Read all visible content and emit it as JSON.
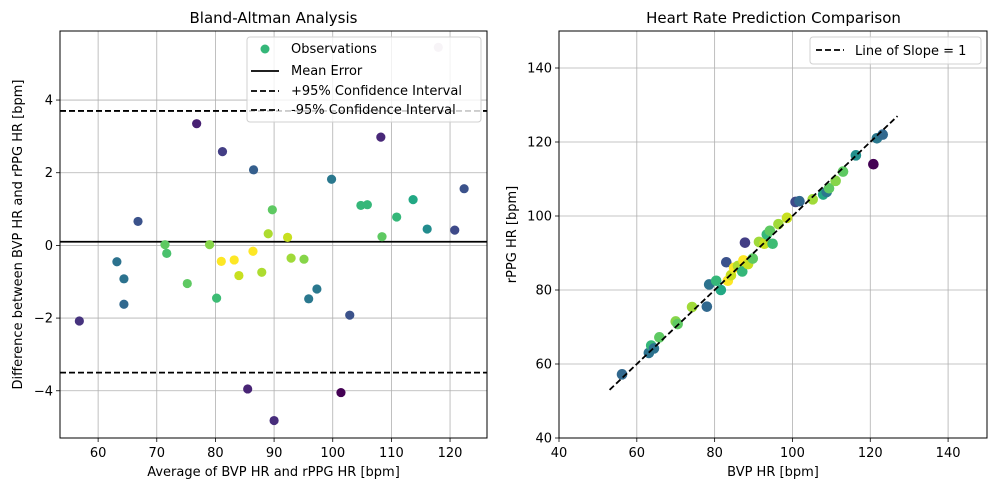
{
  "chart_data": [
    {
      "type": "scatter",
      "title": "Bland-Altman Analysis",
      "xlabel": "Average of BVP HR and rPPG HR [bpm]",
      "ylabel": "Difference between BVP HR and rPPG HR [bpm]",
      "xlim": [
        53.5,
        126.3
      ],
      "ylim": [
        -5.3,
        5.9
      ],
      "xticks": [
        60,
        70,
        80,
        90,
        100,
        110,
        120
      ],
      "yticks": [
        -4,
        -2,
        0,
        2,
        4
      ],
      "grid": true,
      "legend_position": "top-right",
      "mean_error": 0.1,
      "upper_ci": 3.7,
      "lower_ci": -3.5,
      "legend": {
        "observations": "Observations",
        "mean": "Mean Error",
        "upper": "+95% Confidence Interval",
        "lower": "-95% Confidence Interval"
      },
      "points": [
        {
          "x": 56.8,
          "y": -2.08,
          "c": "#46337e"
        },
        {
          "x": 63.2,
          "y": -0.45,
          "c": "#2c728e"
        },
        {
          "x": 64.4,
          "y": -0.92,
          "c": "#2c728e"
        },
        {
          "x": 64.4,
          "y": -1.62,
          "c": "#31688e"
        },
        {
          "x": 66.8,
          "y": 0.66,
          "c": "#3b528b"
        },
        {
          "x": 71.4,
          "y": 0.02,
          "c": "#5ec962"
        },
        {
          "x": 71.7,
          "y": -0.22,
          "c": "#4ac16d"
        },
        {
          "x": 75.2,
          "y": -1.05,
          "c": "#5ec962"
        },
        {
          "x": 76.8,
          "y": 3.35,
          "c": "#482173"
        },
        {
          "x": 79.0,
          "y": 0.02,
          "c": "#86d549"
        },
        {
          "x": 80.2,
          "y": -1.45,
          "c": "#3dbc74"
        },
        {
          "x": 81.0,
          "y": -0.44,
          "c": "#fde725"
        },
        {
          "x": 81.2,
          "y": 2.58,
          "c": "#433e85"
        },
        {
          "x": 83.2,
          "y": -0.4,
          "c": "#fde725"
        },
        {
          "x": 84.0,
          "y": -0.83,
          "c": "#c8e020"
        },
        {
          "x": 85.5,
          "y": -3.95,
          "c": "#482475"
        },
        {
          "x": 86.4,
          "y": -0.16,
          "c": "#fde725"
        },
        {
          "x": 86.5,
          "y": 2.08,
          "c": "#355f8d"
        },
        {
          "x": 87.9,
          "y": -0.74,
          "c": "#addc30"
        },
        {
          "x": 89.0,
          "y": 0.32,
          "c": "#addc30"
        },
        {
          "x": 89.7,
          "y": 0.98,
          "c": "#5ec962"
        },
        {
          "x": 90.0,
          "y": -4.82,
          "c": "#472d7b"
        },
        {
          "x": 92.3,
          "y": 0.22,
          "c": "#c8e020"
        },
        {
          "x": 92.9,
          "y": -0.35,
          "c": "#a0da39"
        },
        {
          "x": 95.1,
          "y": -0.38,
          "c": "#86d549"
        },
        {
          "x": 95.9,
          "y": -1.47,
          "c": "#2a788e"
        },
        {
          "x": 97.3,
          "y": -1.2,
          "c": "#2a788e"
        },
        {
          "x": 99.8,
          "y": 1.82,
          "c": "#2a788e"
        },
        {
          "x": 101.4,
          "y": -4.05,
          "c": "#440154"
        },
        {
          "x": 102.9,
          "y": -1.92,
          "c": "#3b528b"
        },
        {
          "x": 104.8,
          "y": 1.1,
          "c": "#35b779"
        },
        {
          "x": 105.9,
          "y": 1.12,
          "c": "#35b779"
        },
        {
          "x": 108.2,
          "y": 2.98,
          "c": "#482878"
        },
        {
          "x": 108.4,
          "y": 0.24,
          "c": "#5ec962"
        },
        {
          "x": 110.9,
          "y": 0.78,
          "c": "#35b779"
        },
        {
          "x": 113.7,
          "y": 1.26,
          "c": "#22a884"
        },
        {
          "x": 116.1,
          "y": 0.45,
          "c": "#228c8d"
        },
        {
          "x": 118.0,
          "y": 5.45,
          "c": "#d8c8d8"
        },
        {
          "x": 120.8,
          "y": 0.42,
          "c": "#3e4a89"
        },
        {
          "x": 122.4,
          "y": 1.56,
          "c": "#3b528b"
        }
      ]
    },
    {
      "type": "scatter",
      "title": "Heart Rate Prediction Comparison",
      "xlabel": "BVP HR [bpm]",
      "ylabel": "rPPG HR [bpm]",
      "xlim": [
        40,
        150
      ],
      "ylim": [
        40,
        150
      ],
      "xticks": [
        40,
        60,
        80,
        100,
        120,
        140
      ],
      "yticks": [
        40,
        60,
        80,
        100,
        120,
        140
      ],
      "grid": true,
      "legend_position": "top-right",
      "legend": {
        "line": "Line of Slope = 1"
      },
      "identity_line": [
        53,
        127
      ],
      "points": [
        {
          "x": 56.2,
          "y": 57.2,
          "c": "#31688e"
        },
        {
          "x": 63.1,
          "y": 63.0,
          "c": "#2c728e"
        },
        {
          "x": 63.7,
          "y": 65.0,
          "c": "#35b779"
        },
        {
          "x": 64.4,
          "y": 64.2,
          "c": "#2c728e"
        },
        {
          "x": 65.8,
          "y": 67.2,
          "c": "#5ec962"
        },
        {
          "x": 70.0,
          "y": 71.5,
          "c": "#86d549"
        },
        {
          "x": 70.5,
          "y": 70.8,
          "c": "#5ec962"
        },
        {
          "x": 74.2,
          "y": 75.4,
          "c": "#a0da39"
        },
        {
          "x": 78.0,
          "y": 75.5,
          "c": "#31688e"
        },
        {
          "x": 78.6,
          "y": 81.5,
          "c": "#2c728e"
        },
        {
          "x": 80.4,
          "y": 82.5,
          "c": "#35b779"
        },
        {
          "x": 81.6,
          "y": 80.0,
          "c": "#22a884"
        },
        {
          "x": 83.0,
          "y": 87.5,
          "c": "#3b528b"
        },
        {
          "x": 83.4,
          "y": 82.5,
          "c": "#fde725"
        },
        {
          "x": 84.2,
          "y": 84.0,
          "c": "#c8e020"
        },
        {
          "x": 85.0,
          "y": 86.0,
          "c": "#fde725"
        },
        {
          "x": 86.0,
          "y": 86.5,
          "c": "#addc30"
        },
        {
          "x": 87.1,
          "y": 85.0,
          "c": "#35b779"
        },
        {
          "x": 87.4,
          "y": 88.0,
          "c": "#fde725"
        },
        {
          "x": 87.8,
          "y": 92.8,
          "c": "#433e85"
        },
        {
          "x": 88.6,
          "y": 87.0,
          "c": "#c8e020"
        },
        {
          "x": 89.8,
          "y": 88.5,
          "c": "#5ec962"
        },
        {
          "x": 91.4,
          "y": 93.0,
          "c": "#a0da39"
        },
        {
          "x": 92.8,
          "y": 92.5,
          "c": "#c8e020"
        },
        {
          "x": 93.4,
          "y": 95.0,
          "c": "#35b779"
        },
        {
          "x": 94.2,
          "y": 96.0,
          "c": "#5ec962"
        },
        {
          "x": 94.9,
          "y": 92.5,
          "c": "#3dbc74"
        },
        {
          "x": 96.4,
          "y": 97.8,
          "c": "#a0da39"
        },
        {
          "x": 98.6,
          "y": 99.5,
          "c": "#c8e020"
        },
        {
          "x": 100.8,
          "y": 103.8,
          "c": "#3e4a89"
        },
        {
          "x": 101.8,
          "y": 104.0,
          "c": "#31688e"
        },
        {
          "x": 105.2,
          "y": 104.5,
          "c": "#a0da39"
        },
        {
          "x": 107.9,
          "y": 105.8,
          "c": "#22a884"
        },
        {
          "x": 108.8,
          "y": 106.5,
          "c": "#2a788e"
        },
        {
          "x": 109.4,
          "y": 107.5,
          "c": "#5ec962"
        },
        {
          "x": 111.1,
          "y": 109.5,
          "c": "#86d549"
        },
        {
          "x": 113.0,
          "y": 112.0,
          "c": "#5ec962"
        },
        {
          "x": 116.3,
          "y": 116.4,
          "c": "#21908c"
        },
        {
          "x": 120.8,
          "y": 114.0,
          "c": "#440154"
        },
        {
          "x": 121.7,
          "y": 121.0,
          "c": "#2a788e"
        },
        {
          "x": 123.2,
          "y": 122.0,
          "c": "#31688e"
        }
      ]
    }
  ]
}
